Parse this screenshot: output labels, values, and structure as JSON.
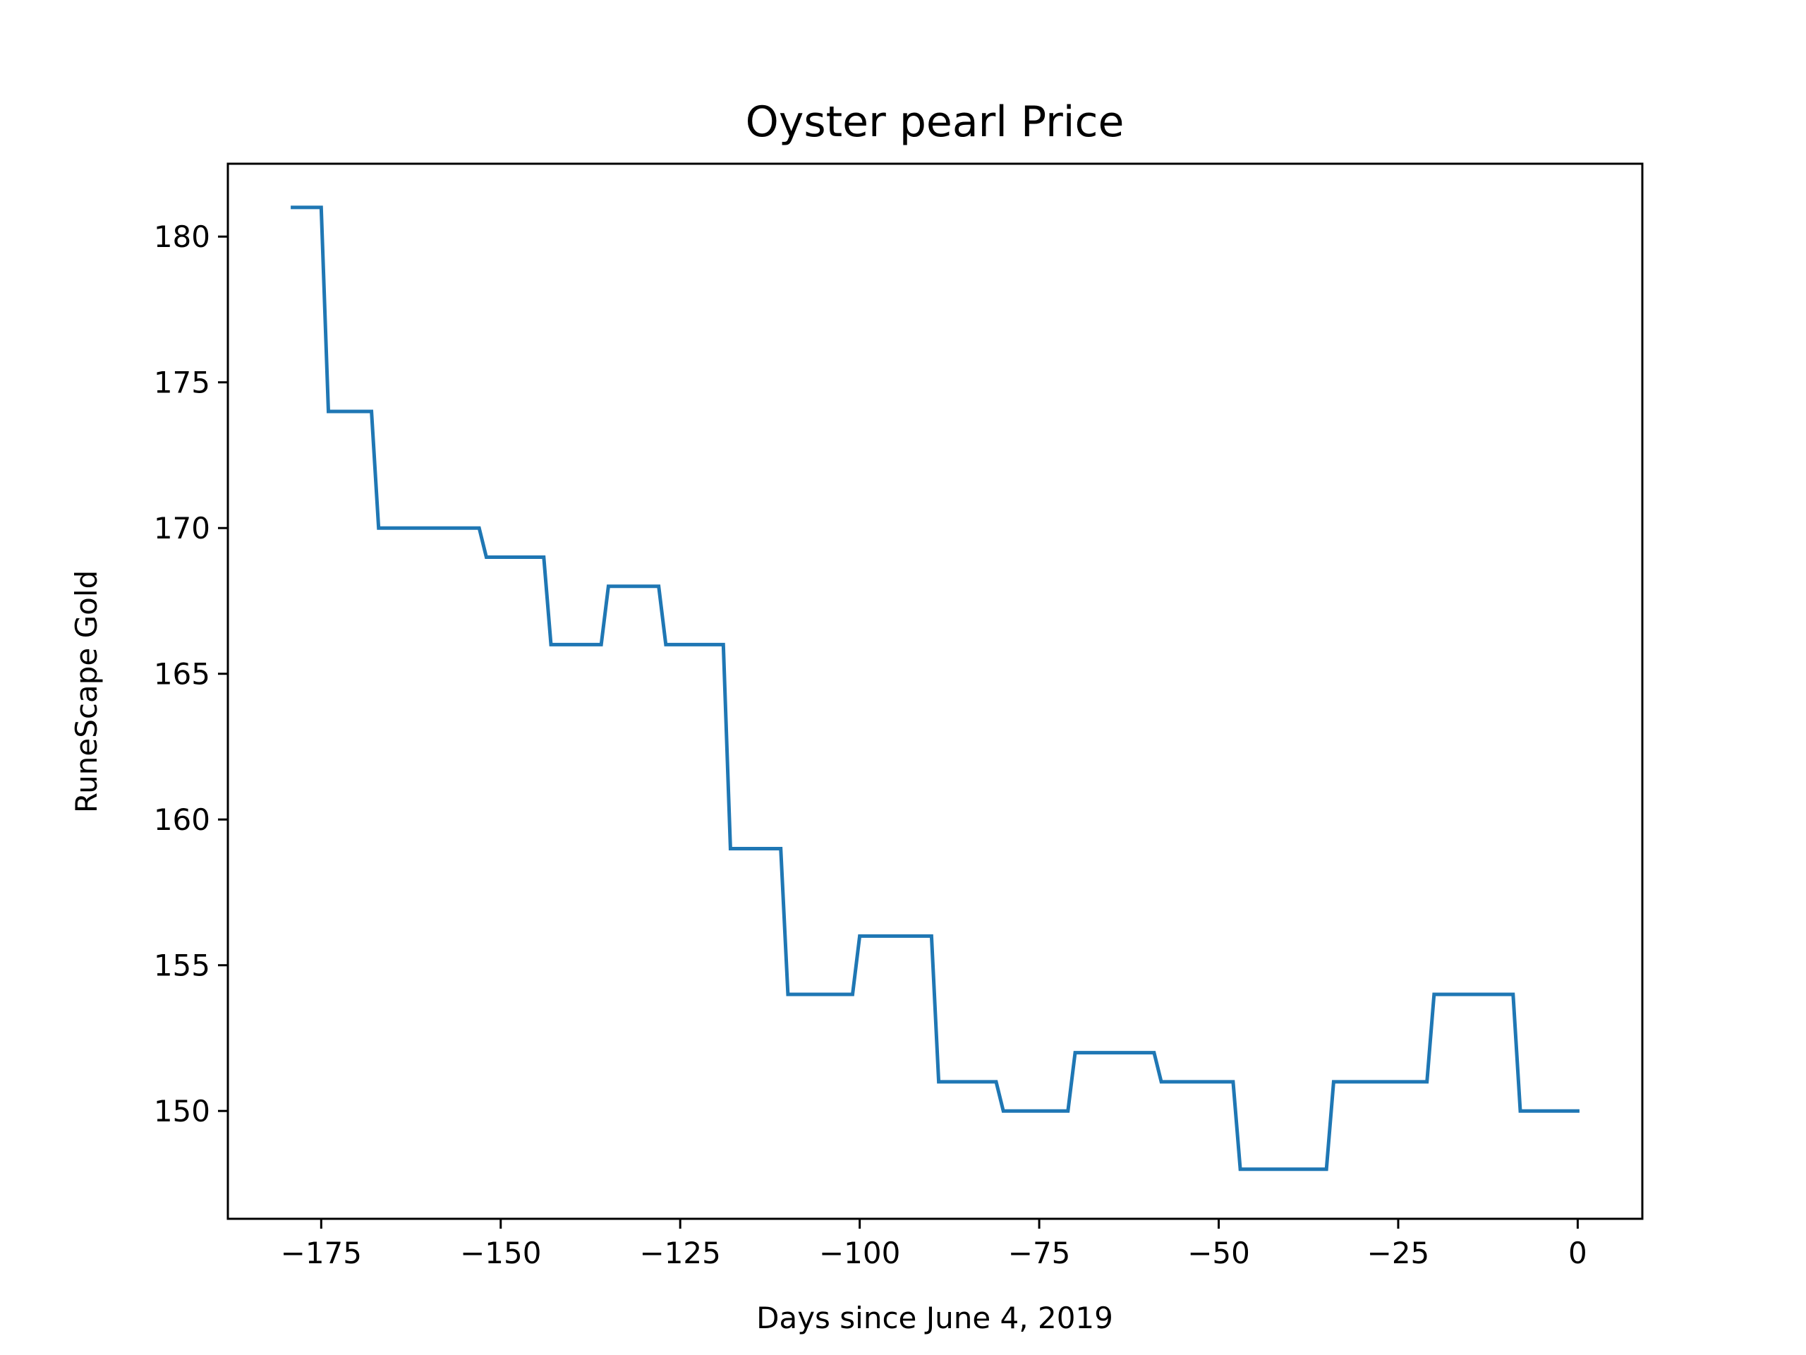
{
  "chart_data": {
    "type": "line",
    "title": "Oyster pearl Price",
    "xlabel": "Days since June 4, 2019",
    "ylabel": "RuneScape Gold",
    "xlim": [
      -188,
      9
    ],
    "ylim": [
      146.3,
      182.5
    ],
    "xticks": [
      -175,
      -150,
      -125,
      -100,
      -75,
      -50,
      -25,
      0
    ],
    "xtick_labels": [
      "−175",
      "−150",
      "−125",
      "−100",
      "−75",
      "−50",
      "−25",
      "0"
    ],
    "yticks": [
      150,
      155,
      160,
      165,
      170,
      175,
      180
    ],
    "ytick_labels": [
      "150",
      "155",
      "160",
      "165",
      "170",
      "175",
      "180"
    ],
    "grid": false,
    "series": [
      {
        "color": "#1f77b4",
        "x": [
          -179,
          -175,
          -174,
          -168,
          -167,
          -153,
          -152,
          -144,
          -143,
          -136,
          -135,
          -128,
          -127,
          -119,
          -118,
          -111,
          -110,
          -101,
          -100,
          -90,
          -89,
          -81,
          -80,
          -71,
          -70,
          -59,
          -58,
          -48,
          -47,
          -35,
          -34,
          -21,
          -20,
          -9,
          -8,
          0
        ],
        "y": [
          181,
          181,
          174,
          174,
          170,
          170,
          169,
          169,
          166,
          166,
          168,
          168,
          166,
          166,
          159,
          159,
          154,
          154,
          156,
          156,
          151,
          151,
          150,
          150,
          152,
          152,
          151,
          151,
          148,
          148,
          151,
          151,
          154,
          154,
          150,
          150
        ]
      }
    ]
  }
}
